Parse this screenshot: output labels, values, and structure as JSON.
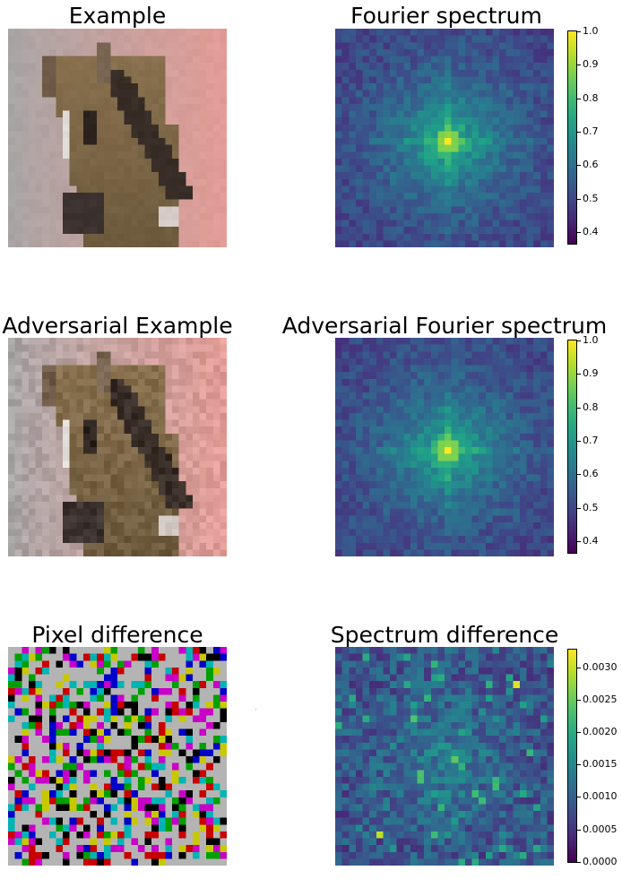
{
  "panels": {
    "example": {
      "title": "Example"
    },
    "fourier": {
      "title": "Fourier spectrum"
    },
    "adv_example": {
      "title": "Adversarial Example"
    },
    "adv_fourier": {
      "title": "Adversarial Fourier spectrum"
    },
    "pixel_diff": {
      "title": "Pixel difference"
    },
    "spec_diff": {
      "title": "Spectrum difference"
    }
  },
  "colormap": "viridis",
  "colorbars": {
    "fourier": {
      "ticks": [
        "1.0",
        "0.9",
        "0.8",
        "0.7",
        "0.6",
        "0.5",
        "0.4"
      ],
      "min": 0.36,
      "max": 1.0
    },
    "adv_fourier": {
      "ticks": [
        "1.0",
        "0.9",
        "0.8",
        "0.7",
        "0.6",
        "0.5",
        "0.4"
      ],
      "min": 0.36,
      "max": 1.0
    },
    "spec_diff": {
      "ticks": [
        "0.0030",
        "0.0025",
        "0.0020",
        "0.0015",
        "0.0010",
        "0.0005",
        "0.0000"
      ],
      "min": 0.0,
      "max": 0.0033
    }
  },
  "chart_data": [
    {
      "type": "heatmap",
      "title": "Example",
      "grid": "32x32",
      "content": "pixelated horse head photo"
    },
    {
      "type": "heatmap",
      "title": "Fourier spectrum",
      "grid": "32x32",
      "colormap": "viridis",
      "zlim": [
        0.36,
        1.0
      ],
      "peak": 1.0
    },
    {
      "type": "heatmap",
      "title": "Adversarial Example",
      "grid": "32x32",
      "content": "pixelated horse head photo with noise"
    },
    {
      "type": "heatmap",
      "title": "Adversarial Fourier spectrum",
      "grid": "32x32",
      "colormap": "viridis",
      "zlim": [
        0.36,
        1.0
      ],
      "peak": 1.0
    },
    {
      "type": "heatmap",
      "title": "Pixel difference",
      "grid": "32x32",
      "colors": [
        "#b4b4b4",
        "#c800c8",
        "#00b4b4",
        "#c8c800",
        "#c80000",
        "#00a000",
        "#0000c8",
        "#000000"
      ]
    },
    {
      "type": "heatmap",
      "title": "Spectrum difference",
      "grid": "32x32",
      "colormap": "viridis",
      "zlim": [
        0.0,
        0.0033
      ],
      "max": 0.0031
    }
  ]
}
